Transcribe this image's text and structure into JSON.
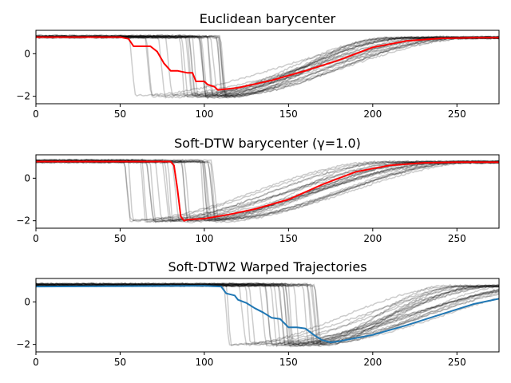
{
  "chart_data": [
    {
      "type": "line",
      "title": "Euclidean barycenter",
      "xlim": [
        0,
        275
      ],
      "ylim": [
        -2.35,
        1.1
      ],
      "xticks": [
        0,
        50,
        100,
        150,
        200,
        250
      ],
      "yticks": [
        0,
        -2
      ],
      "tick_labels_x": [
        "0",
        "50",
        "100",
        "150",
        "200",
        "250"
      ],
      "tick_labels_y": [
        "0",
        "−2"
      ],
      "background_series": {
        "color": "#000000",
        "opacity": 0.2,
        "count": 25,
        "high_level": 0.8,
        "low_level": -2.0,
        "drop_x_range": [
          52,
          110
        ],
        "recovery_end_x_range": [
          205,
          270
        ]
      },
      "series": [
        {
          "color": "#ff0000",
          "x": [
            0,
            50,
            55,
            58,
            68,
            72,
            76,
            80,
            84,
            90,
            93,
            95,
            100,
            102,
            106,
            108,
            120,
            140,
            160,
            180,
            200,
            220,
            240,
            260,
            275
          ],
          "y": [
            0.78,
            0.78,
            0.7,
            0.35,
            0.35,
            0.1,
            -0.45,
            -0.8,
            -0.8,
            -0.9,
            -0.9,
            -1.3,
            -1.3,
            -1.45,
            -1.55,
            -1.7,
            -1.6,
            -1.25,
            -0.8,
            -0.3,
            0.3,
            0.6,
            0.72,
            0.75,
            0.75
          ]
        }
      ]
    },
    {
      "type": "line",
      "title": "Soft-DTW barycenter (γ=1.0)",
      "xlim": [
        0,
        275
      ],
      "ylim": [
        -2.35,
        1.1
      ],
      "xticks": [
        0,
        50,
        100,
        150,
        200,
        250
      ],
      "yticks": [
        0,
        -2
      ],
      "tick_labels_x": [
        "0",
        "50",
        "100",
        "150",
        "200",
        "250"
      ],
      "tick_labels_y": [
        "0",
        "−2"
      ],
      "background_series": {
        "color": "#000000",
        "opacity": 0.2,
        "count": 25,
        "high_level": 0.8,
        "low_level": -2.0,
        "drop_x_range": [
          52,
          110
        ],
        "recovery_end_x_range": [
          205,
          270
        ]
      },
      "series": [
        {
          "color": "#ff0000",
          "x": [
            0,
            80,
            82,
            84,
            86,
            88,
            90,
            100,
            115,
            130,
            150,
            170,
            190,
            210,
            230,
            250,
            275
          ],
          "y": [
            0.78,
            0.78,
            0.6,
            -0.5,
            -1.8,
            -2.0,
            -1.95,
            -1.9,
            -1.7,
            -1.45,
            -1.0,
            -0.3,
            0.3,
            0.6,
            0.72,
            0.75,
            0.75
          ]
        }
      ]
    },
    {
      "type": "line",
      "title": "Soft-DTW2 Warped Trajectories",
      "xlim": [
        0,
        275
      ],
      "ylim": [
        -2.35,
        1.1
      ],
      "xticks": [
        0,
        50,
        100,
        150,
        200,
        250
      ],
      "yticks": [
        0,
        -2
      ],
      "tick_labels_x": [
        "0",
        "50",
        "100",
        "150",
        "200",
        "250"
      ],
      "tick_labels_y": [
        "0",
        "−2"
      ],
      "background_series": {
        "color": "#000000",
        "opacity": 0.2,
        "count": 25,
        "high_level": 0.8,
        "low_level": -2.0,
        "drop_x_range": [
          110,
          172
        ],
        "recovery_end_x_range": [
          240,
          330
        ]
      },
      "series": [
        {
          "color": "#1f77b4",
          "x": [
            0,
            100,
            110,
            113,
            118,
            120,
            125,
            130,
            135,
            140,
            145,
            150,
            155,
            160,
            165,
            170,
            175,
            180,
            200,
            220,
            240,
            260,
            275
          ],
          "y": [
            0.72,
            0.75,
            0.72,
            0.4,
            0.3,
            0.1,
            -0.05,
            -0.3,
            -0.5,
            -0.75,
            -0.8,
            -1.2,
            -1.2,
            -1.25,
            -1.55,
            -1.8,
            -1.9,
            -1.85,
            -1.55,
            -1.1,
            -0.6,
            -0.1,
            0.15
          ]
        }
      ]
    }
  ]
}
